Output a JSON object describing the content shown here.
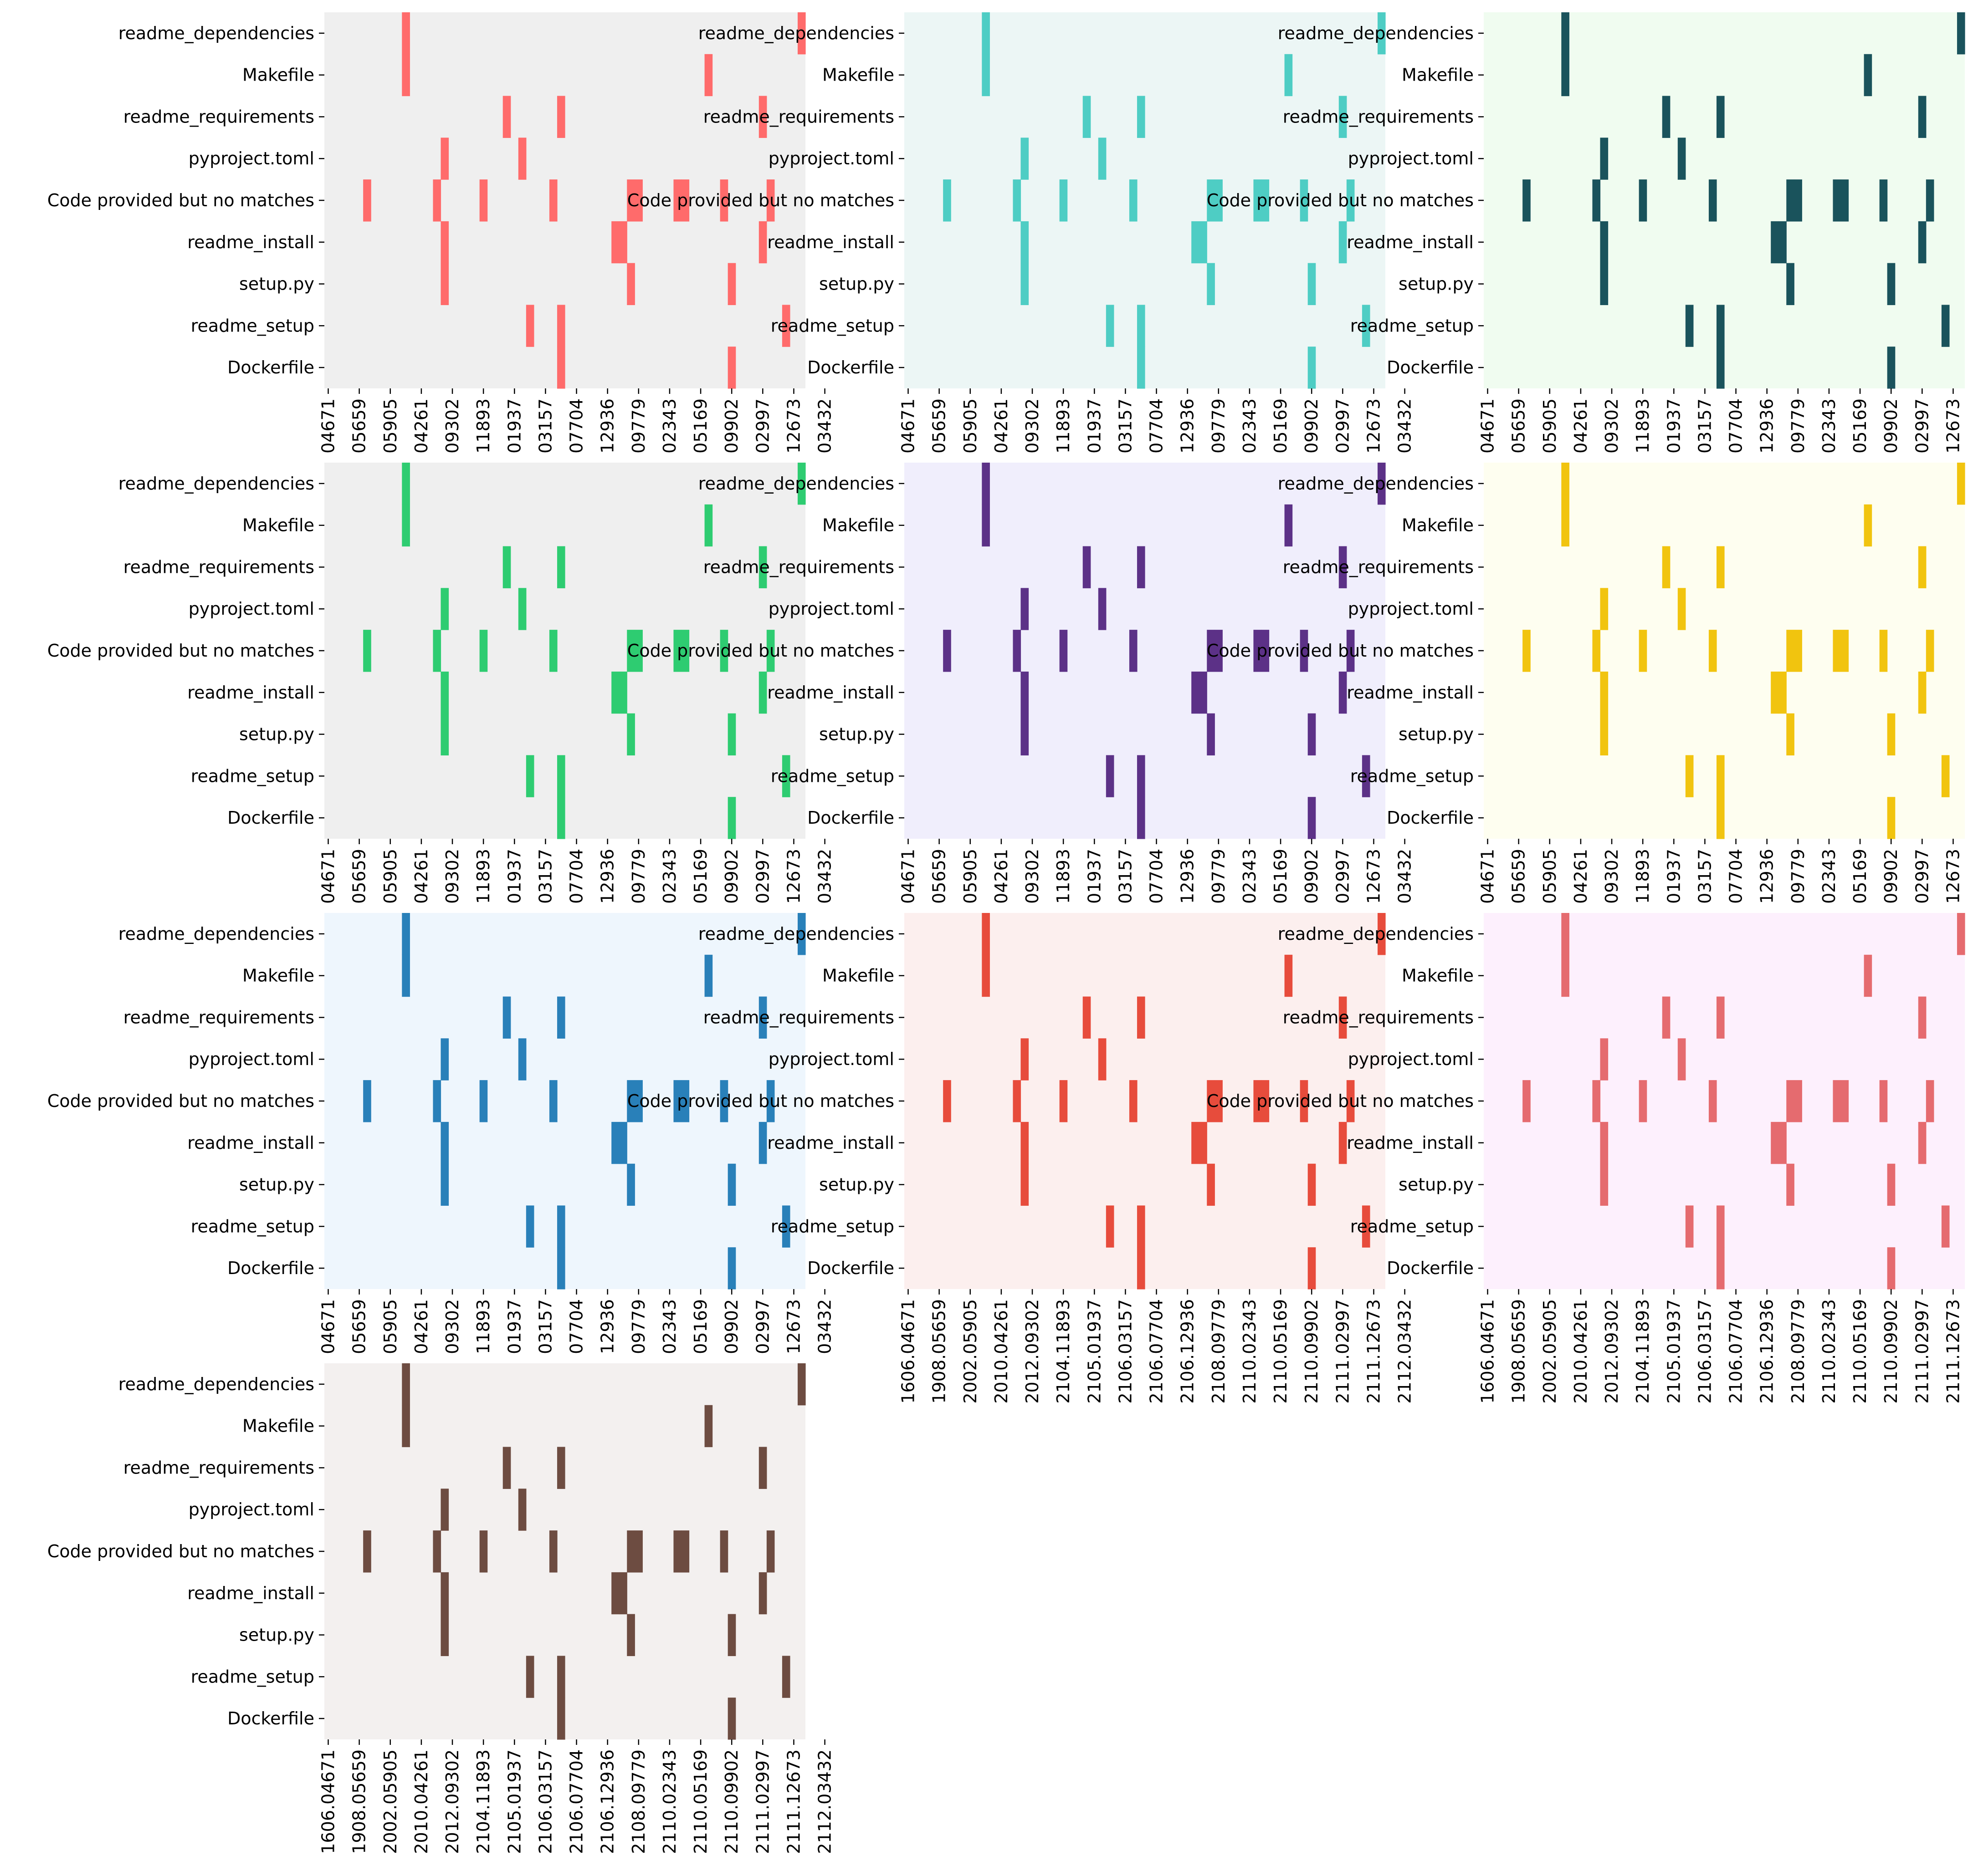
{
  "chart_data": {
    "type": "heatmap",
    "rows": [
      "readme_dependencies",
      "Makefile",
      "readme_requirements",
      "pyproject.toml",
      "Code provided but no matches",
      "readme_install",
      "setup.py",
      "readme_setup",
      "Dockerfile"
    ],
    "columns": [
      "1606.04671",
      "1908.05659",
      "2002.05905",
      "2010.04261",
      "2012.09302",
      "2104.11893",
      "2105.01937",
      "2106.03157",
      "2106.07704",
      "2106.12936",
      "2108.09779",
      "2110.02343",
      "2110.05169",
      "2110.09902",
      "2111.02997",
      "2111.12673",
      "2112.03432"
    ],
    "column_count": 62,
    "tick_positions": [
      0,
      4,
      8,
      12,
      16,
      20,
      24,
      28,
      32,
      36,
      40,
      44,
      48,
      52,
      56,
      60,
      64
    ],
    "active_cells": {
      "readme_dependencies": [
        10,
        61
      ],
      "Makefile": [
        10,
        49
      ],
      "readme_requirements": [
        23,
        30,
        56
      ],
      "pyproject.toml": [
        15,
        25
      ],
      "Code provided but no matches": [
        5,
        14,
        20,
        29,
        39,
        40,
        45,
        46,
        51,
        57
      ],
      "readme_install": [
        15,
        37,
        38,
        56
      ],
      "setup.py": [
        15,
        39,
        52
      ],
      "readme_setup": [
        26,
        30,
        59
      ],
      "Dockerfile": [
        30,
        52
      ]
    },
    "panels": [
      {
        "color": "#ff6b6b",
        "background": "#efefef",
        "full_xlabels": false
      },
      {
        "color": "#4ecdc4",
        "background": "#ecf6f5",
        "full_xlabels": false
      },
      {
        "color": "#1a535c",
        "background": "#f0fcf0",
        "full_xlabels": false
      },
      {
        "color": "#2ecc71",
        "background": "#efefef",
        "full_xlabels": false
      },
      {
        "color": "#5c3187",
        "background": "#f0eefc",
        "full_xlabels": false
      },
      {
        "color": "#f1c40f",
        "background": "#fefef0",
        "full_xlabels": false
      },
      {
        "color": "#2980b9",
        "background": "#eef6fd",
        "full_xlabels": false
      },
      {
        "color": "#e74c3c",
        "background": "#fcefee",
        "full_xlabels": true
      },
      {
        "color": "#e56b6f",
        "background": "#fdf0fd",
        "full_xlabels": true
      },
      {
        "color": "#6d4c41",
        "background": "#f3f0ef",
        "full_xlabels": true
      }
    ]
  }
}
